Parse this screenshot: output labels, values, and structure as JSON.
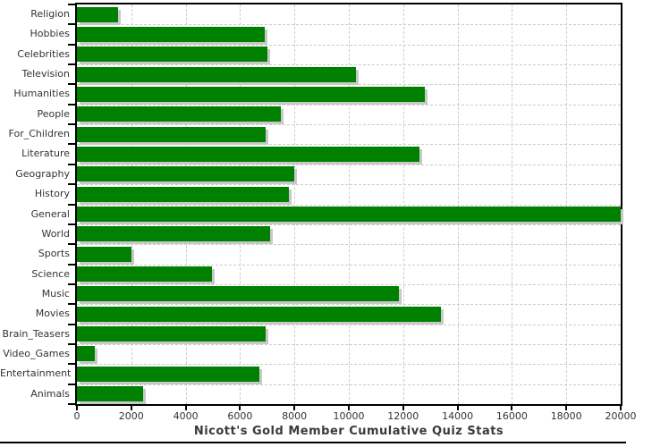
{
  "chart_data": {
    "type": "bar",
    "orientation": "horizontal",
    "title": "Nicott's Gold Member Cumulative Quiz Stats",
    "categories": [
      "Religion",
      "Hobbies",
      "Celebrities",
      "Television",
      "Humanities",
      "People",
      "For_Children",
      "Literature",
      "Geography",
      "History",
      "General",
      "World",
      "Sports",
      "Science",
      "Music",
      "Movies",
      "Brain_Teasers",
      "Video_Games",
      "Entertainment",
      "Animals"
    ],
    "values": [
      1500,
      6900,
      7000,
      10250,
      12800,
      7500,
      6950,
      12600,
      8000,
      7800,
      20000,
      7100,
      2000,
      4975,
      11850,
      13400,
      6950,
      650,
      6700,
      2450
    ],
    "xlabel": "",
    "ylabel": "",
    "xlim": [
      0,
      20000
    ],
    "x_ticks": [
      0,
      2000,
      4000,
      6000,
      8000,
      10000,
      12000,
      14000,
      16000,
      18000,
      20000
    ],
    "grid": "dashed-both-axes",
    "legend": "none",
    "bar_color": "#008000",
    "bar_shadow_color": "#c8c8c8",
    "axis_color": "#000000",
    "grid_color": "#cccccc",
    "text_color": "#333333",
    "plot_background": "#ffffff"
  }
}
